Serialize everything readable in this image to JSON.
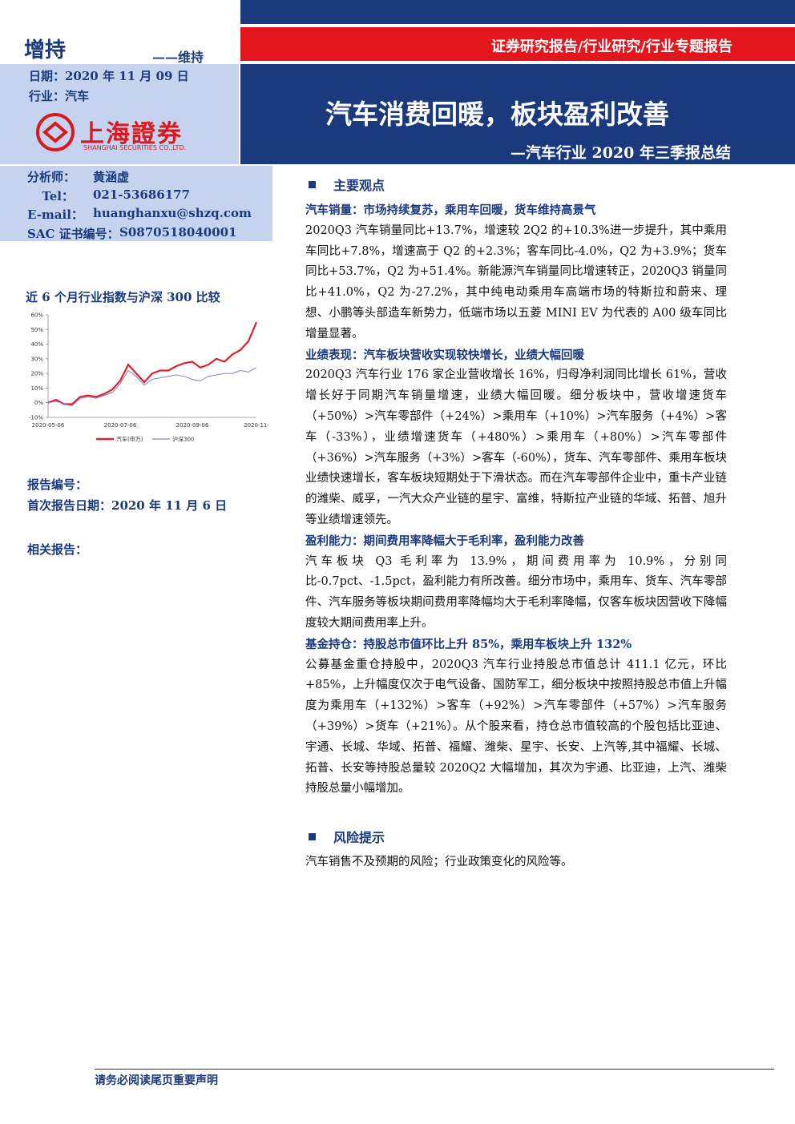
{
  "header": {
    "rating": "增持",
    "rating_note": "——维持",
    "date": "日期：2020 年 11 月 09 日",
    "industry": "行业：汽车",
    "logo_cn": "上海證券",
    "logo_en": "SHANGHAI SECURITIES CO.,LTD.",
    "category": "证券研究报告/行业研究/行业专题报告",
    "title": "汽车消费回暖，板块盈利改善",
    "subtitle": "—汽车行业 2020 年三季报总结"
  },
  "analyst": {
    "rows": [
      [
        "分析师：",
        "黄涵虚"
      ],
      [
        "Tel：",
        "021-53686177"
      ],
      [
        "E-mail：",
        "huanghanxu@shzq.com"
      ],
      [
        "SAC 证书编号：",
        "S0870518040001"
      ]
    ]
  },
  "chart_data": {
    "type": "line",
    "title": "近 6 个月行业指数与沪深 300 比较",
    "categories": [
      "2020-05-06",
      null,
      null,
      null,
      null,
      null,
      null,
      null,
      null,
      "2020-07-06",
      null,
      null,
      null,
      null,
      null,
      null,
      null,
      null,
      "2020-09-06",
      null,
      null,
      null,
      null,
      null,
      null,
      null,
      "2020-11-"
    ],
    "series": [
      {
        "name": "汽车(申万)",
        "color": "#e0202a",
        "values": [
          0,
          2,
          -1,
          -1,
          4,
          5,
          4,
          6,
          9,
          15,
          26,
          20,
          14,
          20,
          22,
          22,
          25,
          27,
          28,
          24,
          26,
          30,
          28,
          33,
          36,
          42,
          55
        ]
      },
      {
        "name": "沪深300",
        "color": "#8080e0",
        "values": [
          0,
          1,
          -1,
          -2,
          3,
          4,
          3,
          5,
          7,
          13,
          22,
          18,
          12,
          16,
          17,
          18,
          19,
          18,
          16,
          15,
          18,
          19,
          20,
          20,
          22,
          21,
          24
        ]
      }
    ],
    "ylim": [
      -10,
      60
    ],
    "yticks": [
      {
        "value": -10,
        "label": "-10%"
      },
      {
        "value": 0,
        "label": "0%"
      },
      {
        "value": 10,
        "label": "10%"
      },
      {
        "value": 20,
        "label": "20%"
      },
      {
        "value": 30,
        "label": "30%"
      },
      {
        "value": 40,
        "label": "40%"
      },
      {
        "value": 50,
        "label": "50%"
      },
      {
        "value": 60,
        "label": "60%"
      }
    ],
    "legend": "bottom"
  },
  "meta": {
    "report_no": "报告编号：",
    "first_date": "首次报告日期：2020 年 11 月 6 日",
    "related": "相关报告："
  },
  "main": {
    "heading": "主要观点",
    "sections": [
      {
        "title": "汽车销量：市场持续复苏，乘用车回暖，货车维持高景气",
        "text": "2020Q3 汽车销量同比+13.7%，增速较 2Q2 的+10.3%进一步提升，其中乘用车同比+7.8%，增速高于 Q2 的+2.3%；客车同比-4.0%，Q2 为+3.9%；货车同比+53.7%，Q2 为+51.4%。新能源汽车销量同比增速转正，2020Q3 销量同比+41.0%，Q2 为-27.2%，其中纯电动乘用车高端市场的特斯拉和蔚来、理想、小鹏等头部造车新势力，低端市场以五菱 MINI EV 为代表的 A00 级车同比增量显著。"
      },
      {
        "title": "业绩表现：汽车板块营收实现较快增长，业绩大幅回暖",
        "text": "2020Q3 汽车行业 176 家企业营收增长 16%，归母净利润同比增长 61%，营收增长好于同期汽车销量增速，业绩大幅回暖。细分板块中，营收增速货车（+50%）>汽车零部件（+24%）>乘用车（+10%）>汽车服务（+4%）>客车（-33%），业绩增速货车（+480%）>乘用车（+80%）>汽车零部件（+36%）>汽车服务（+3%）>客车（-60%），货车、汽车零部件、乘用车板块业绩快速增长，客车板块短期处于下滑状态。而在汽车零部件企业中，重卡产业链的潍柴、威孚，一汽大众产业链的星宇、富维，特斯拉产业链的华域、拓普、旭升等业绩增速领先。"
      },
      {
        "title": "盈利能力：期间费用率降幅大于毛利率，盈利能力改善",
        "text": "汽车板块 Q3 毛利率为 13.9%，期间费用率为 10.9%，分别同比-0.7pct、-1.5pct，盈利能力有所改善。细分市场中，乘用车、货车、汽车零部件、汽车服务等板块期间费用率降幅均大于毛利率降幅，仅客车板块因营收下降幅度较大期间费用率上升。"
      },
      {
        "title": "基金持仓：持股总市值环比上升 85%，乘用车板块上升 132%",
        "text": "公募基金重仓持股中，2020Q3 汽车行业持股总市值总计 411.1 亿元，环比+85%，上升幅度仅次于电气设备、国防军工，细分板块中按照持股总市值上升幅度为乘用车（+132%）>客车（+92%）>汽车零部件（+57%）>汽车服务（+39%）>货车（+21%）。从个股来看，持仓总市值较高的个股包括比亚迪、宇通、长城、华域、拓普、福耀、潍柴、星宇、长安、上汽等,其中福耀、长城、拓普、长安等持股总量较 2020Q2 大幅增加，其次为宇通、比亚迪，上汽、潍柴持股总量小幅增加。"
      }
    ]
  },
  "risk": {
    "heading": "风险提示",
    "text": "汽车销售不及预期的风险；行业政策变化的风险等。"
  },
  "footer": {
    "notice": "请务必阅读尾页重要声明"
  }
}
